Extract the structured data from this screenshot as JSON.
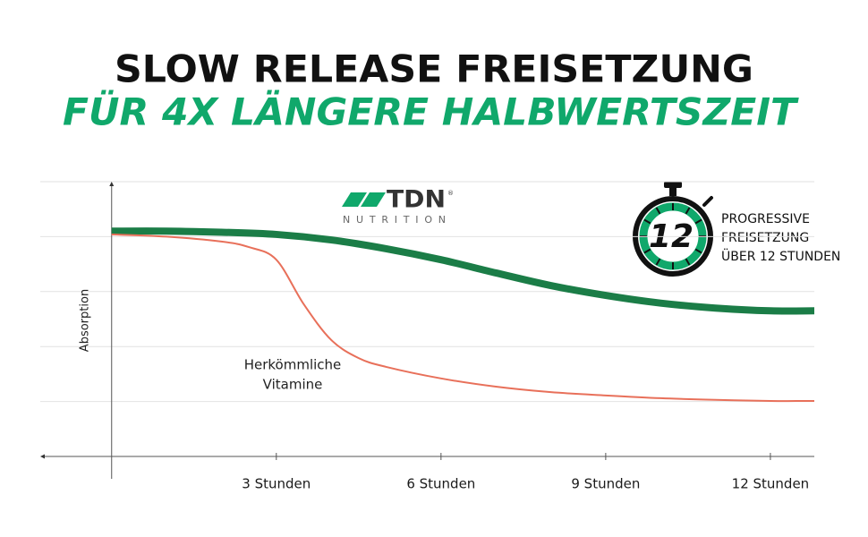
{
  "chart_data": {
    "type": "line",
    "title": "SLOW RELEASE FREISETZUNG",
    "subtitle": "FÜR 4X LÄNGERE HALBWERTSZEIT",
    "y_label": "Absorption",
    "xlim": [
      -1.3,
      12.8
    ],
    "ylim": [
      0,
      5
    ],
    "xticks": [
      {
        "value": 3,
        "label": "3 Stunden"
      },
      {
        "value": 6,
        "label": "6 Stunden"
      },
      {
        "value": 9,
        "label": "9 Stunden"
      },
      {
        "value": 12,
        "label": "12 Stunden"
      }
    ],
    "yticks": [
      0,
      1,
      2,
      3,
      4,
      5
    ],
    "grid": true,
    "series": [
      {
        "color": "#1b7d47",
        "x": [
          0,
          1,
          2,
          3,
          4,
          5,
          6,
          7,
          8,
          9,
          10,
          11,
          12,
          12.8
        ],
        "values": [
          4.1,
          4.1,
          4.08,
          4.04,
          3.94,
          3.78,
          3.58,
          3.34,
          3.11,
          2.93,
          2.79,
          2.7,
          2.65,
          2.65
        ]
      },
      {
        "color": "#e8705a",
        "x": [
          0,
          1,
          2,
          2.5,
          3,
          3.5,
          4,
          4.5,
          5,
          6,
          7,
          8,
          9,
          10,
          11,
          12,
          12.8
        ],
        "values": [
          4.04,
          4.0,
          3.91,
          3.81,
          3.58,
          2.77,
          2.12,
          1.79,
          1.63,
          1.42,
          1.27,
          1.17,
          1.11,
          1.06,
          1.03,
          1.01,
          1.01
        ]
      }
    ],
    "annotation": {
      "text_lines": [
        "Herkömmliche",
        "Vitamine"
      ]
    },
    "logo": {
      "brand": "TDN",
      "registered": "®",
      "tagline": "NUTRITION"
    },
    "badge": {
      "number": "12",
      "text_lines": [
        "PROGRESSIVE",
        "FREISETZUNG",
        "ÜBER 12 STUNDEN"
      ]
    }
  }
}
